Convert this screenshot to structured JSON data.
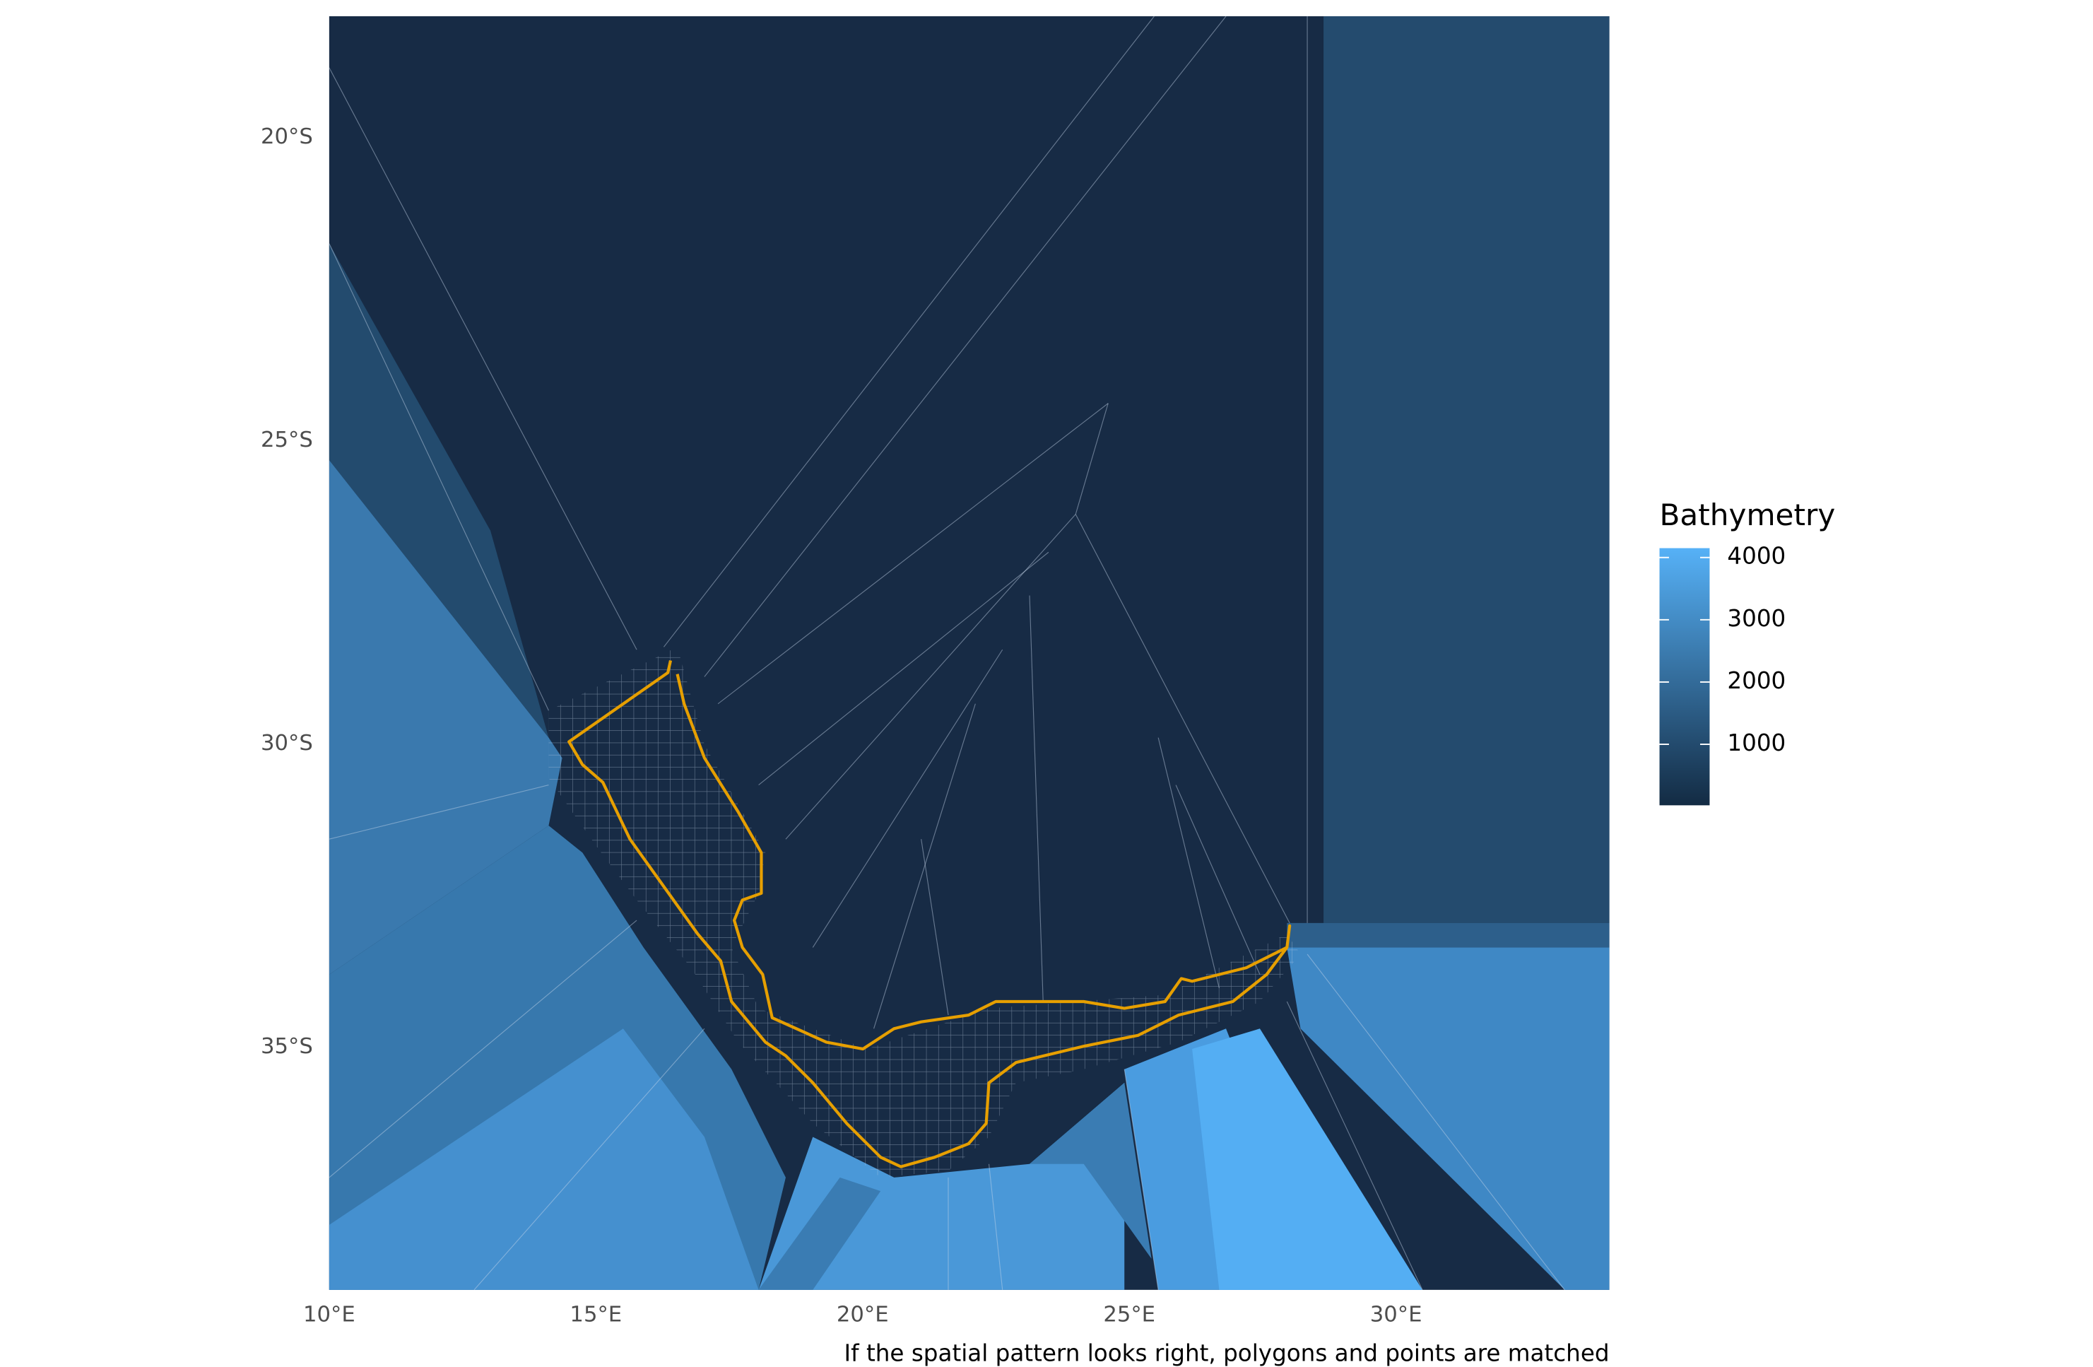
{
  "chart_data": {
    "type": "map",
    "xlim": [
      10,
      34
    ],
    "ylim": [
      -39,
      -18
    ],
    "xticks": [
      {
        "value": 10,
        "label": "10°E"
      },
      {
        "value": 15,
        "label": "15°E"
      },
      {
        "value": 20,
        "label": "20°E"
      },
      {
        "value": 25,
        "label": "25°E"
      },
      {
        "value": 30,
        "label": "30°E"
      }
    ],
    "yticks": [
      {
        "value": -20,
        "label": "20°S"
      },
      {
        "value": -25,
        "label": "25°S"
      },
      {
        "value": -30,
        "label": "30°S"
      },
      {
        "value": -35,
        "label": "35°S"
      }
    ],
    "legend": {
      "title": "Bathymetry",
      "limits": [
        20,
        4150
      ],
      "ticks": [
        1000,
        2000,
        3000,
        4000
      ],
      "colors": [
        "#132B43",
        "#56B1F7"
      ]
    },
    "caption": "If the spatial pattern looks right, polygons and points are matched"
  }
}
